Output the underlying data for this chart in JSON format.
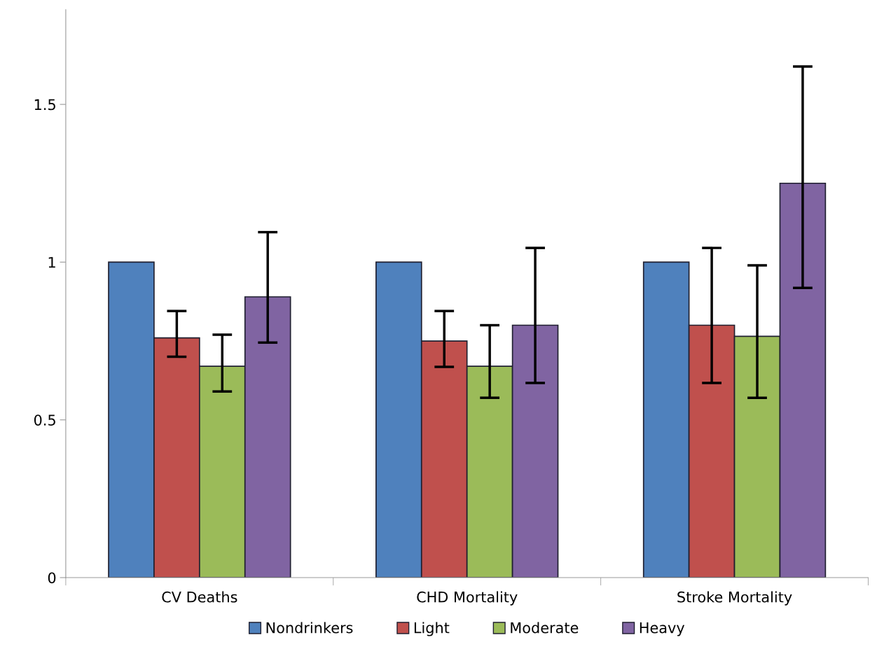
{
  "chart_data": {
    "type": "bar",
    "categories": [
      "CV Deaths",
      "CHD Mortality",
      "Stroke Mortality"
    ],
    "series": [
      {
        "name": "Nondrinkers",
        "color": "#4f81bd",
        "values": [
          1.0,
          1.0,
          1.0
        ]
      },
      {
        "name": "Light",
        "color": "#c0504d",
        "values": [
          0.76,
          0.75,
          0.8
        ],
        "errors": [
          [
            0.7,
            0.845
          ],
          [
            0.668,
            0.845
          ],
          [
            0.617,
            1.045
          ]
        ]
      },
      {
        "name": "Moderate",
        "color": "#9bbb59",
        "values": [
          0.67,
          0.67,
          0.765
        ],
        "errors": [
          [
            0.59,
            0.77
          ],
          [
            0.57,
            0.8
          ],
          [
            0.57,
            0.99
          ]
        ]
      },
      {
        "name": "Heavy",
        "color": "#8064a2",
        "values": [
          0.89,
          0.8,
          1.25
        ],
        "errors": [
          [
            0.745,
            1.095
          ],
          [
            0.617,
            1.045
          ],
          [
            0.918,
            1.62
          ]
        ]
      }
    ],
    "ylim": [
      0,
      1.8
    ],
    "yticks": [
      0,
      0.5,
      1,
      1.5
    ],
    "grid": false,
    "legend": "bottom"
  }
}
